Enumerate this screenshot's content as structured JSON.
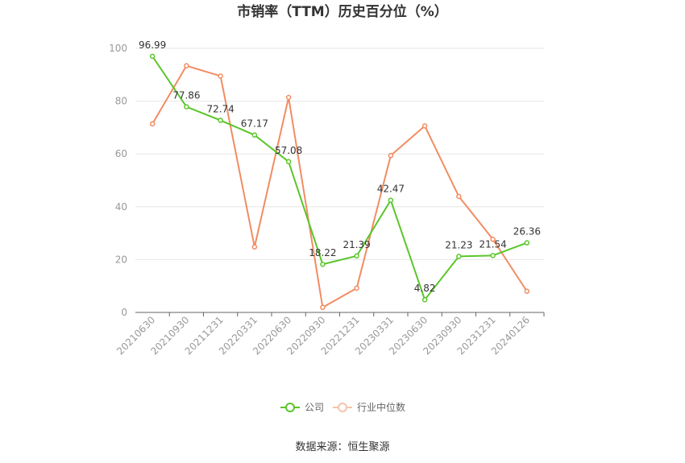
{
  "chart_data": {
    "type": "line",
    "title": "市销率（TTM）历史百分位（%）",
    "categories": [
      "20210630",
      "20210930",
      "20211231",
      "20220331",
      "20220630",
      "20220930",
      "20221231",
      "20230331",
      "20230630",
      "20230930",
      "20231231",
      "20240126"
    ],
    "series": [
      {
        "name": "公司",
        "color": "#5ac62a",
        "values": [
          96.99,
          77.86,
          72.74,
          67.17,
          57.08,
          18.22,
          21.39,
          42.47,
          4.82,
          21.23,
          21.54,
          26.36
        ],
        "labels": [
          "96.99",
          "77.86",
          "72.74",
          "67.17",
          "57.08",
          "18.22",
          "21.39",
          "42.47",
          "4.82",
          "21.23",
          "21.54",
          "26.36"
        ]
      },
      {
        "name": "行业中位数",
        "color": "#f28c62",
        "values": [
          71.4,
          93.4,
          89.5,
          24.8,
          81.4,
          1.9,
          9.2,
          59.4,
          70.6,
          43.9,
          27.7,
          8.0
        ]
      }
    ],
    "ylim": [
      0,
      100
    ],
    "yticks": [
      "0",
      "20",
      "40",
      "60",
      "80",
      "100"
    ],
    "xlabel": "",
    "ylabel": "",
    "grid": true,
    "legend_position": "bottom"
  },
  "source_text": "数据来源：恒生聚源"
}
